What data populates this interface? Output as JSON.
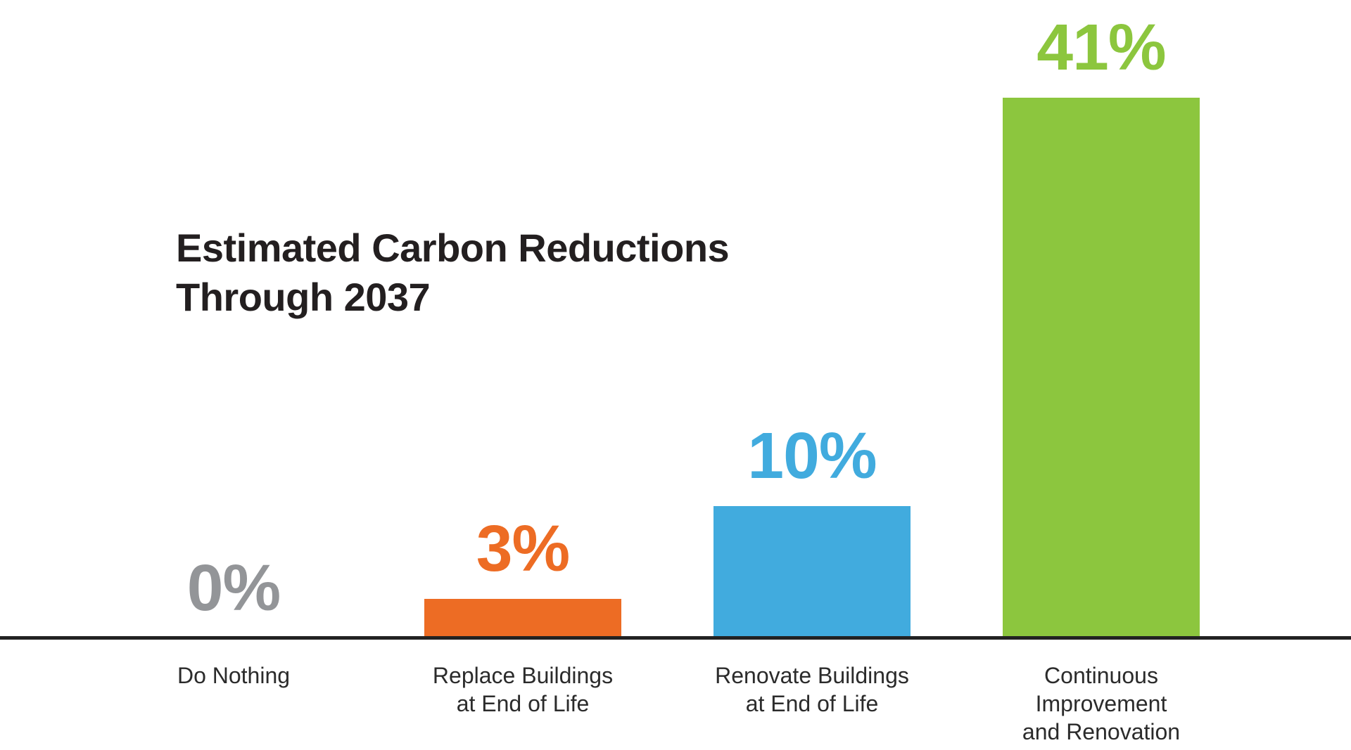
{
  "chart_data": {
    "type": "bar",
    "title": "Estimated Carbon Reductions Through 2037",
    "title_lines": [
      "Estimated Carbon Reductions",
      "Through 2037"
    ],
    "categories": [
      "Do Nothing",
      "Replace Buildings at End of Life",
      "Renovate Buildings at End of Life",
      "Continuous Improvement and Renovation"
    ],
    "category_lines": [
      [
        "Do Nothing"
      ],
      [
        "Replace Buildings",
        "at End of Life"
      ],
      [
        "Renovate Buildings",
        "at End of Life"
      ],
      [
        "Continuous",
        "Improvement",
        "and Renovation"
      ]
    ],
    "values": [
      0,
      3,
      10,
      41
    ],
    "value_labels": [
      "0%",
      "3%",
      "10%",
      "41%"
    ],
    "unit": "%",
    "bar_colors": [
      "#939598",
      "#ED6C24",
      "#41ABDE",
      "#8CC63E"
    ],
    "value_label_colors": [
      "#939598",
      "#ED6C24",
      "#41ABDE",
      "#8CC63E"
    ],
    "xlabel": "",
    "ylabel": "",
    "ylim": [
      0,
      45
    ],
    "grid": false,
    "legend": false,
    "orientation": "vertical",
    "axis_line_color": "#222222",
    "title_color": "#231F20",
    "category_label_color": "#2B2B2B",
    "background_color": "#FFFFFF"
  }
}
